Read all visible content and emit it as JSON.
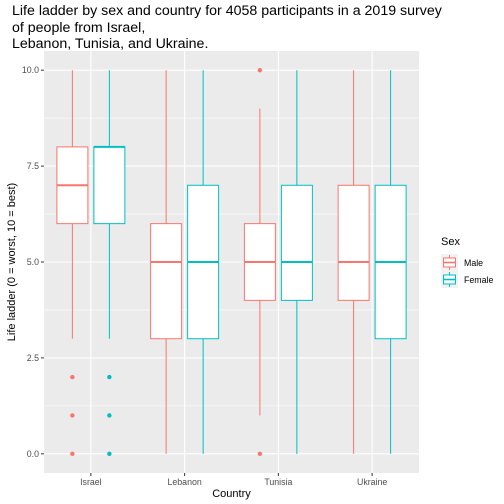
{
  "chart_data": {
    "type": "boxplot",
    "title": "Life ladder by sex and country for 4058 participants in a 2019 survey\nof people from Israel,\nLebanon, Tunisia, and Ukraine.",
    "xlabel": "Country",
    "ylabel": "Life ladder (0 = worst, 10 = best)",
    "categories": [
      "Israel",
      "Lebanon",
      "Tunisia",
      "Ukraine"
    ],
    "ylim": [
      -0.5,
      10.5
    ],
    "yticks": [
      0.0,
      2.5,
      5.0,
      7.5,
      10.0
    ],
    "ytick_labels": [
      "0.0",
      "2.5",
      "5.0",
      "7.5",
      "10.0"
    ],
    "grid": true,
    "legend": {
      "title": "Sex",
      "placement": "right"
    },
    "series": [
      {
        "name": "Male",
        "color": "#F8766D",
        "boxes": [
          {
            "category": "Israel",
            "lower_whisker": 3,
            "q1": 6,
            "median": 7,
            "q3": 8,
            "upper_whisker": 10,
            "outliers": [
              2,
              1,
              0
            ]
          },
          {
            "category": "Lebanon",
            "lower_whisker": 0,
            "q1": 3,
            "median": 5,
            "q3": 6,
            "upper_whisker": 10,
            "outliers": []
          },
          {
            "category": "Tunisia",
            "lower_whisker": 1,
            "q1": 4,
            "median": 5,
            "q3": 6,
            "upper_whisker": 9,
            "outliers": [
              10,
              0
            ]
          },
          {
            "category": "Ukraine",
            "lower_whisker": 0,
            "q1": 4,
            "median": 5,
            "q3": 7,
            "upper_whisker": 10,
            "outliers": []
          }
        ]
      },
      {
        "name": "Female",
        "color": "#00BFC4",
        "boxes": [
          {
            "category": "Israel",
            "lower_whisker": 3,
            "q1": 6,
            "median": 8,
            "q3": 8,
            "upper_whisker": 10,
            "outliers": [
              2,
              1,
              0
            ]
          },
          {
            "category": "Lebanon",
            "lower_whisker": 0,
            "q1": 3,
            "median": 5,
            "q3": 7,
            "upper_whisker": 10,
            "outliers": []
          },
          {
            "category": "Tunisia",
            "lower_whisker": 0,
            "q1": 4,
            "median": 5,
            "q3": 7,
            "upper_whisker": 10,
            "outliers": []
          },
          {
            "category": "Ukraine",
            "lower_whisker": 0,
            "q1": 3,
            "median": 5,
            "q3": 7,
            "upper_whisker": 10,
            "outliers": []
          }
        ]
      }
    ],
    "colors": {
      "panel_background": "#EBEBEB",
      "grid": "#FFFFFF",
      "box_fill": "#FFFFFF"
    }
  }
}
